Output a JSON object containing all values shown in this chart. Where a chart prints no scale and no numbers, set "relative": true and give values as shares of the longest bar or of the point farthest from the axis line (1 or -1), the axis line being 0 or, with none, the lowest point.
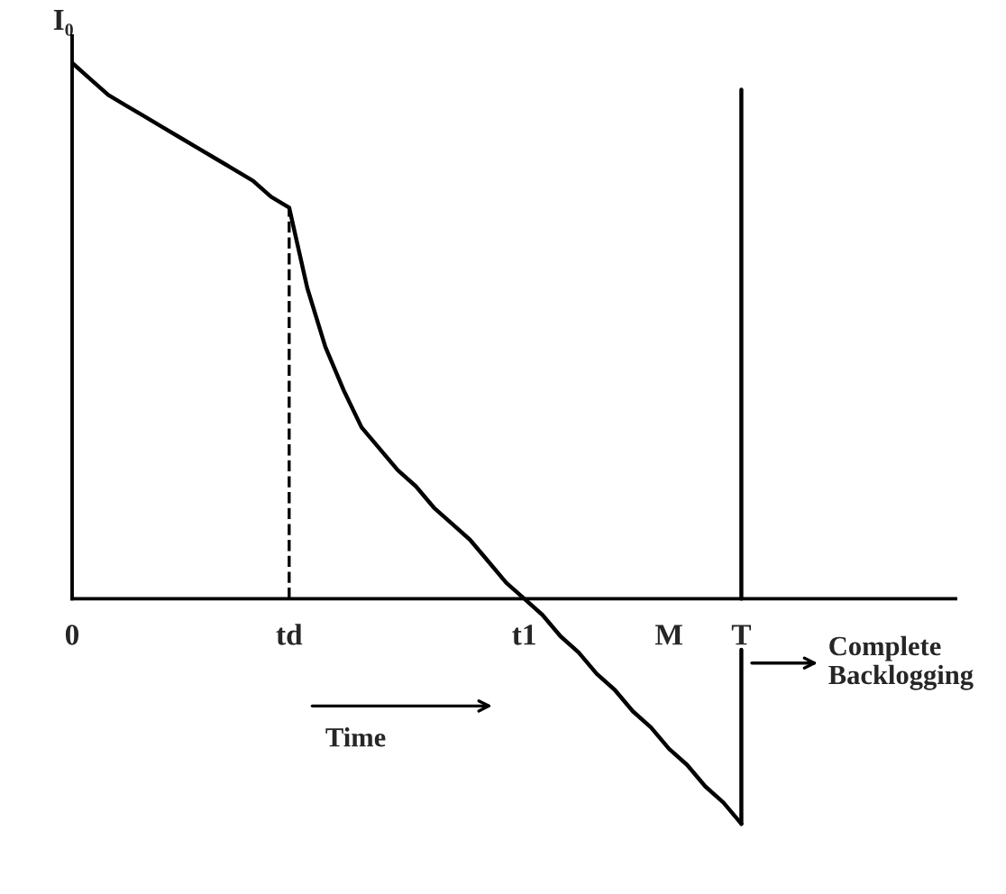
{
  "chart_data": {
    "type": "line",
    "relative": true,
    "ylabel": "I₀",
    "categories": [
      "0",
      null,
      null,
      null,
      null,
      null,
      null,
      null,
      null,
      null,
      null,
      null,
      "td",
      null,
      null,
      null,
      null,
      null,
      null,
      null,
      null,
      null,
      null,
      null,
      null,
      "t1",
      null,
      null,
      null,
      null,
      null,
      null,
      null,
      "M",
      null,
      null,
      null,
      "T"
    ],
    "series": [
      {
        "color": "#000000",
        "values": [
          1.0,
          0.97,
          0.94,
          0.92,
          0.9,
          0.88,
          0.86,
          0.84,
          0.82,
          0.8,
          0.78,
          0.75,
          0.73,
          0.58,
          0.47,
          0.39,
          0.32,
          0.28,
          0.24,
          0.21,
          0.17,
          0.14,
          0.11,
          0.07,
          0.03,
          0,
          -0.03,
          -0.07,
          -0.1,
          -0.14,
          -0.17,
          -0.21,
          -0.24,
          -0.28,
          -0.31,
          -0.35,
          -0.38,
          -0.42
        ]
      }
    ],
    "ref_lines": [
      {
        "axis": "x",
        "value": "td",
        "line_style": "dashed",
        "color": "#000000"
      },
      {
        "axis": "x",
        "value": "T",
        "line_style": "solid",
        "color": "#000000"
      }
    ],
    "annotations": [
      "Time",
      "Complete Backlogging"
    ],
    "legend": false
  }
}
